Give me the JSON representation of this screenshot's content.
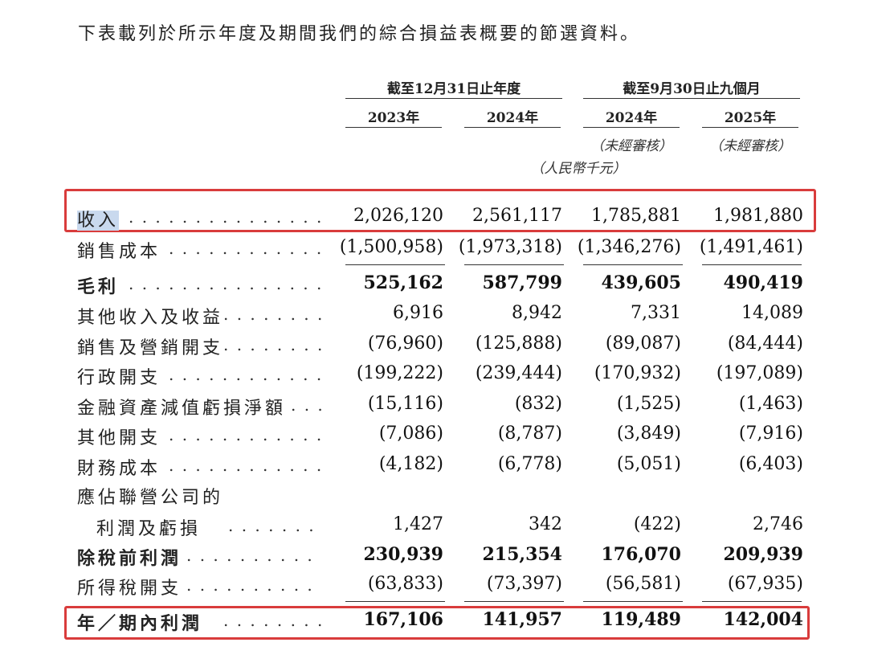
{
  "intro": "下表載列於所示年度及期間我們的綜合損益表概要的節選資料。",
  "header": {
    "group1": "截至12月31日止年度",
    "group2": "截至9月30日止九個月",
    "years": [
      "2023年",
      "2024年",
      "2024年",
      "2025年"
    ],
    "unaudited": "（未經審核）",
    "unit": "（人民幣千元）"
  },
  "rows": [
    {
      "label": "收入",
      "values": [
        "2,026,120",
        "2,561,117",
        "1,785,881",
        "1,981,880"
      ]
    },
    {
      "label": "銷售成本",
      "values": [
        "(1,500,958)",
        "(1,973,318)",
        "(1,346,276)",
        "(1,491,461)"
      ]
    },
    {
      "label": "毛利",
      "values": [
        "525,162",
        "587,799",
        "439,605",
        "490,419"
      ]
    },
    {
      "label": "其他收入及收益",
      "values": [
        "6,916",
        "8,942",
        "7,331",
        "14,089"
      ]
    },
    {
      "label": "銷售及營銷開支",
      "values": [
        "(76,960)",
        "(125,888)",
        "(89,087)",
        "(84,444)"
      ]
    },
    {
      "label": "行政開支",
      "values": [
        "(199,222)",
        "(239,444)",
        "(170,932)",
        "(197,089)"
      ]
    },
    {
      "label": "金融資產減值虧損淨額",
      "values": [
        "(15,116)",
        "(832)",
        "(1,525)",
        "(1,463)"
      ]
    },
    {
      "label": "其他開支",
      "values": [
        "(7,086)",
        "(8,787)",
        "(3,849)",
        "(7,916)"
      ]
    },
    {
      "label": "財務成本",
      "values": [
        "(4,182)",
        "(6,778)",
        "(5,051)",
        "(6,403)"
      ]
    },
    {
      "label": "應佔聯營公司的",
      "values": []
    },
    {
      "label": "利潤及虧損",
      "values": [
        "1,427",
        "342",
        "(422)",
        "2,746"
      ]
    },
    {
      "label": "除稅前利潤",
      "values": [
        "230,939",
        "215,354",
        "176,070",
        "209,939"
      ]
    },
    {
      "label": "所得稅開支",
      "values": [
        "(63,833)",
        "(73,397)",
        "(56,581)",
        "(67,935)"
      ]
    },
    {
      "label": "年／期內利潤",
      "values": [
        "167,106",
        "141,957",
        "119,489",
        "142,004"
      ]
    }
  ]
}
